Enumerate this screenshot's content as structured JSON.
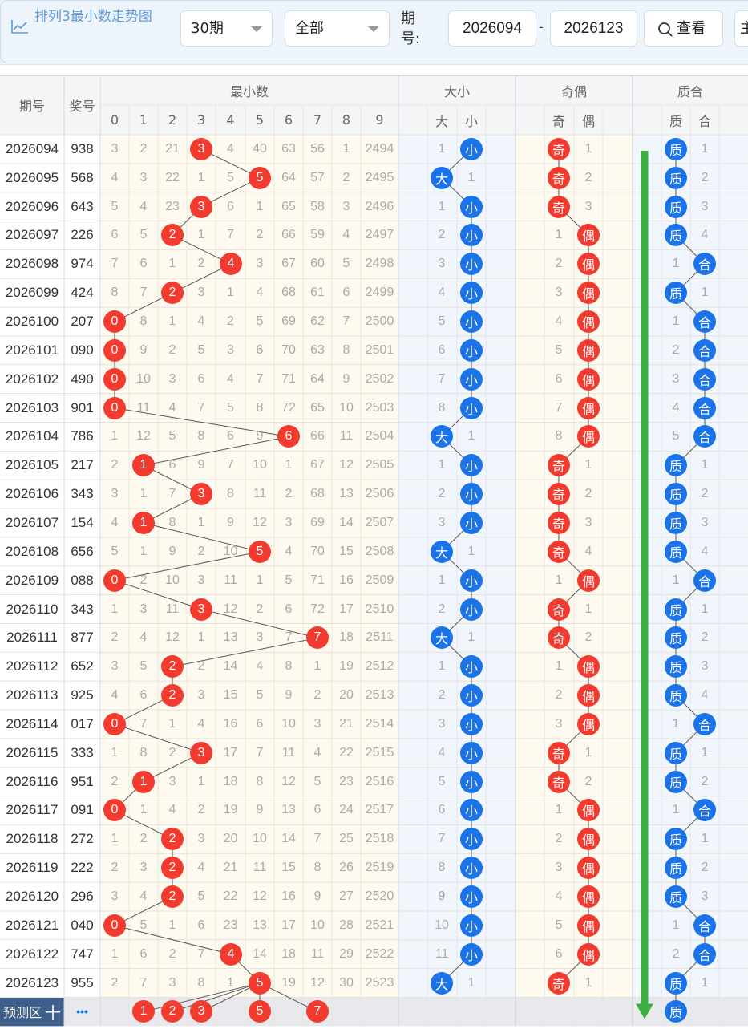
{
  "title": "排列3最小数走势图",
  "controls": {
    "period_select": "30期",
    "filter_select": "全部",
    "range_label": "期号:",
    "range_from": "2026094",
    "range_to": "2026123",
    "view_button": "查看",
    "extra_button": "主"
  },
  "headers": {
    "period": "期号",
    "prize": "奖号",
    "min_group": "最小数",
    "digits": [
      "0",
      "1",
      "2",
      "3",
      "4",
      "5",
      "6",
      "7",
      "8",
      "9"
    ],
    "size_group": "大小",
    "size_cols": [
      "大",
      "小"
    ],
    "parity_group": "奇偶",
    "parity_cols": [
      "奇",
      "偶"
    ],
    "prime_group": "质合",
    "prime_cols": [
      "质",
      "合"
    ]
  },
  "rows": [
    {
      "p": "2026094",
      "n": "938",
      "d": [
        "3",
        "2",
        "21",
        "3",
        "4",
        "40",
        "63",
        "56",
        "1",
        "2494"
      ],
      "m": 3,
      "s": [
        "1",
        "小"
      ],
      "o": [
        "奇",
        "1"
      ],
      "q": [
        "质",
        "1"
      ]
    },
    {
      "p": "2026095",
      "n": "568",
      "d": [
        "4",
        "3",
        "22",
        "1",
        "5",
        "5",
        "64",
        "57",
        "2",
        "2495"
      ],
      "m": 5,
      "s": [
        "大",
        "1"
      ],
      "o": [
        "奇",
        "2"
      ],
      "q": [
        "质",
        "2"
      ]
    },
    {
      "p": "2026096",
      "n": "643",
      "d": [
        "5",
        "4",
        "23",
        "3",
        "6",
        "1",
        "65",
        "58",
        "3",
        "2496"
      ],
      "m": 3,
      "s": [
        "1",
        "小"
      ],
      "o": [
        "奇",
        "3"
      ],
      "q": [
        "质",
        "3"
      ]
    },
    {
      "p": "2026097",
      "n": "226",
      "d": [
        "6",
        "5",
        "2",
        "1",
        "7",
        "2",
        "66",
        "59",
        "4",
        "2497"
      ],
      "m": 2,
      "s": [
        "2",
        "小"
      ],
      "o": [
        "1",
        "偶"
      ],
      "q": [
        "质",
        "4"
      ]
    },
    {
      "p": "2026098",
      "n": "974",
      "d": [
        "7",
        "6",
        "1",
        "2",
        "4",
        "3",
        "67",
        "60",
        "5",
        "2498"
      ],
      "m": 4,
      "s": [
        "3",
        "小"
      ],
      "o": [
        "2",
        "偶"
      ],
      "q": [
        "1",
        "合"
      ]
    },
    {
      "p": "2026099",
      "n": "424",
      "d": [
        "8",
        "7",
        "2",
        "3",
        "1",
        "4",
        "68",
        "61",
        "6",
        "2499"
      ],
      "m": 2,
      "s": [
        "4",
        "小"
      ],
      "o": [
        "3",
        "偶"
      ],
      "q": [
        "质",
        "1"
      ]
    },
    {
      "p": "2026100",
      "n": "207",
      "d": [
        "0",
        "8",
        "1",
        "4",
        "2",
        "5",
        "69",
        "62",
        "7",
        "2500"
      ],
      "m": 0,
      "s": [
        "5",
        "小"
      ],
      "o": [
        "4",
        "偶"
      ],
      "q": [
        "1",
        "合"
      ]
    },
    {
      "p": "2026101",
      "n": "090",
      "d": [
        "0",
        "9",
        "2",
        "5",
        "3",
        "6",
        "70",
        "63",
        "8",
        "2501"
      ],
      "m": 0,
      "s": [
        "6",
        "小"
      ],
      "o": [
        "5",
        "偶"
      ],
      "q": [
        "2",
        "合"
      ]
    },
    {
      "p": "2026102",
      "n": "490",
      "d": [
        "0",
        "10",
        "3",
        "6",
        "4",
        "7",
        "71",
        "64",
        "9",
        "2502"
      ],
      "m": 0,
      "s": [
        "7",
        "小"
      ],
      "o": [
        "6",
        "偶"
      ],
      "q": [
        "3",
        "合"
      ]
    },
    {
      "p": "2026103",
      "n": "901",
      "d": [
        "0",
        "11",
        "4",
        "7",
        "5",
        "8",
        "72",
        "65",
        "10",
        "2503"
      ],
      "m": 0,
      "s": [
        "8",
        "小"
      ],
      "o": [
        "7",
        "偶"
      ],
      "q": [
        "4",
        "合"
      ]
    },
    {
      "p": "2026104",
      "n": "786",
      "d": [
        "1",
        "12",
        "5",
        "8",
        "6",
        "9",
        "6",
        "66",
        "11",
        "2504"
      ],
      "m": 6,
      "s": [
        "大",
        "1"
      ],
      "o": [
        "8",
        "偶"
      ],
      "q": [
        "5",
        "合"
      ]
    },
    {
      "p": "2026105",
      "n": "217",
      "d": [
        "2",
        "1",
        "6",
        "9",
        "7",
        "10",
        "1",
        "67",
        "12",
        "2505"
      ],
      "m": 1,
      "s": [
        "1",
        "小"
      ],
      "o": [
        "奇",
        "1"
      ],
      "q": [
        "质",
        "1"
      ]
    },
    {
      "p": "2026106",
      "n": "343",
      "d": [
        "3",
        "1",
        "7",
        "3",
        "8",
        "11",
        "2",
        "68",
        "13",
        "2506"
      ],
      "m": 3,
      "s": [
        "2",
        "小"
      ],
      "o": [
        "奇",
        "2"
      ],
      "q": [
        "质",
        "2"
      ]
    },
    {
      "p": "2026107",
      "n": "154",
      "d": [
        "4",
        "1",
        "8",
        "1",
        "9",
        "12",
        "3",
        "69",
        "14",
        "2507"
      ],
      "m": 1,
      "s": [
        "3",
        "小"
      ],
      "o": [
        "奇",
        "3"
      ],
      "q": [
        "质",
        "3"
      ]
    },
    {
      "p": "2026108",
      "n": "656",
      "d": [
        "5",
        "1",
        "9",
        "2",
        "10",
        "5",
        "4",
        "70",
        "15",
        "2508"
      ],
      "m": 5,
      "s": [
        "大",
        "1"
      ],
      "o": [
        "奇",
        "4"
      ],
      "q": [
        "质",
        "4"
      ]
    },
    {
      "p": "2026109",
      "n": "088",
      "d": [
        "0",
        "2",
        "10",
        "3",
        "11",
        "1",
        "5",
        "71",
        "16",
        "2509"
      ],
      "m": 0,
      "s": [
        "1",
        "小"
      ],
      "o": [
        "1",
        "偶"
      ],
      "q": [
        "1",
        "合"
      ]
    },
    {
      "p": "2026110",
      "n": "343",
      "d": [
        "1",
        "3",
        "11",
        "3",
        "12",
        "2",
        "6",
        "72",
        "17",
        "2510"
      ],
      "m": 3,
      "s": [
        "2",
        "小"
      ],
      "o": [
        "奇",
        "1"
      ],
      "q": [
        "质",
        "1"
      ]
    },
    {
      "p": "2026111",
      "n": "877",
      "d": [
        "2",
        "4",
        "12",
        "1",
        "13",
        "3",
        "7",
        "7",
        "18",
        "2511"
      ],
      "m": 7,
      "s": [
        "大",
        "1"
      ],
      "o": [
        "奇",
        "2"
      ],
      "q": [
        "质",
        "2"
      ]
    },
    {
      "p": "2026112",
      "n": "652",
      "d": [
        "3",
        "5",
        "2",
        "2",
        "14",
        "4",
        "8",
        "1",
        "19",
        "2512"
      ],
      "m": 2,
      "s": [
        "1",
        "小"
      ],
      "o": [
        "1",
        "偶"
      ],
      "q": [
        "质",
        "3"
      ]
    },
    {
      "p": "2026113",
      "n": "925",
      "d": [
        "4",
        "6",
        "2",
        "3",
        "15",
        "5",
        "9",
        "2",
        "20",
        "2513"
      ],
      "m": 2,
      "s": [
        "2",
        "小"
      ],
      "o": [
        "2",
        "偶"
      ],
      "q": [
        "质",
        "4"
      ]
    },
    {
      "p": "2026114",
      "n": "017",
      "d": [
        "0",
        "7",
        "1",
        "4",
        "16",
        "6",
        "10",
        "3",
        "21",
        "2514"
      ],
      "m": 0,
      "s": [
        "3",
        "小"
      ],
      "o": [
        "3",
        "偶"
      ],
      "q": [
        "1",
        "合"
      ]
    },
    {
      "p": "2026115",
      "n": "333",
      "d": [
        "1",
        "8",
        "2",
        "3",
        "17",
        "7",
        "11",
        "4",
        "22",
        "2515"
      ],
      "m": 3,
      "s": [
        "4",
        "小"
      ],
      "o": [
        "奇",
        "1"
      ],
      "q": [
        "质",
        "1"
      ]
    },
    {
      "p": "2026116",
      "n": "951",
      "d": [
        "2",
        "1",
        "3",
        "1",
        "18",
        "8",
        "12",
        "5",
        "23",
        "2516"
      ],
      "m": 1,
      "s": [
        "5",
        "小"
      ],
      "o": [
        "奇",
        "2"
      ],
      "q": [
        "质",
        "2"
      ]
    },
    {
      "p": "2026117",
      "n": "091",
      "d": [
        "0",
        "1",
        "4",
        "2",
        "19",
        "9",
        "13",
        "6",
        "24",
        "2517"
      ],
      "m": 0,
      "s": [
        "6",
        "小"
      ],
      "o": [
        "1",
        "偶"
      ],
      "q": [
        "1",
        "合"
      ]
    },
    {
      "p": "2026118",
      "n": "272",
      "d": [
        "1",
        "2",
        "2",
        "3",
        "20",
        "10",
        "14",
        "7",
        "25",
        "2518"
      ],
      "m": 2,
      "s": [
        "7",
        "小"
      ],
      "o": [
        "2",
        "偶"
      ],
      "q": [
        "质",
        "1"
      ]
    },
    {
      "p": "2026119",
      "n": "222",
      "d": [
        "2",
        "3",
        "2",
        "4",
        "21",
        "11",
        "15",
        "8",
        "26",
        "2519"
      ],
      "m": 2,
      "s": [
        "8",
        "小"
      ],
      "o": [
        "3",
        "偶"
      ],
      "q": [
        "质",
        "2"
      ]
    },
    {
      "p": "2026120",
      "n": "296",
      "d": [
        "3",
        "4",
        "2",
        "5",
        "22",
        "12",
        "16",
        "9",
        "27",
        "2520"
      ],
      "m": 2,
      "s": [
        "9",
        "小"
      ],
      "o": [
        "4",
        "偶"
      ],
      "q": [
        "质",
        "3"
      ]
    },
    {
      "p": "2026121",
      "n": "040",
      "d": [
        "0",
        "5",
        "1",
        "6",
        "23",
        "13",
        "17",
        "10",
        "28",
        "2521"
      ],
      "m": 0,
      "s": [
        "10",
        "小"
      ],
      "o": [
        "5",
        "偶"
      ],
      "q": [
        "1",
        "合"
      ]
    },
    {
      "p": "2026122",
      "n": "747",
      "d": [
        "1",
        "6",
        "2",
        "7",
        "4",
        "14",
        "18",
        "11",
        "29",
        "2522"
      ],
      "m": 4,
      "s": [
        "11",
        "小"
      ],
      "o": [
        "6",
        "偶"
      ],
      "q": [
        "2",
        "合"
      ]
    },
    {
      "p": "2026123",
      "n": "955",
      "d": [
        "2",
        "7",
        "3",
        "8",
        "1",
        "5",
        "19",
        "12",
        "30",
        "2523"
      ],
      "m": 5,
      "s": [
        "大",
        "1"
      ],
      "o": [
        "奇",
        "1"
      ],
      "q": [
        "质",
        "1"
      ]
    }
  ],
  "predict": {
    "label": "预测区",
    "plus": "十",
    "more": "•••",
    "min_digits": [
      "1",
      "2",
      "3",
      "5",
      "7"
    ],
    "prime_ball": "质"
  },
  "colors": {
    "red": "#f23a2e",
    "blue": "#1a73e8",
    "trend_arrow": "#3cb043"
  }
}
